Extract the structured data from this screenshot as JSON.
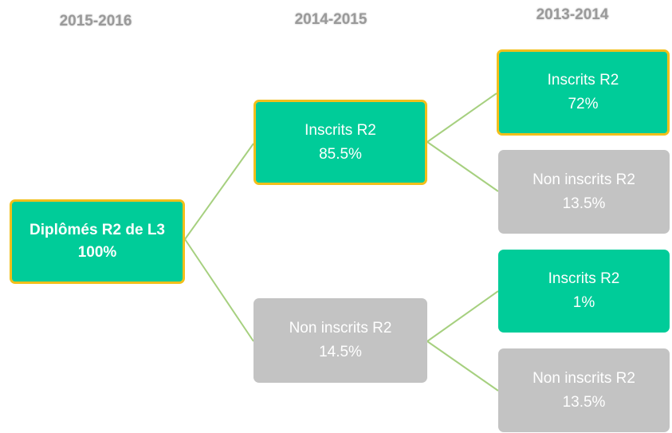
{
  "headers": [
    "2015-2016",
    "2014-2015",
    "2013-2014"
  ],
  "nodes": [
    {
      "label": "Diplômés R2 de L3",
      "value": "100%"
    },
    {
      "label": "Inscrits R2",
      "value": "85.5%"
    },
    {
      "label": "Non inscrits R2",
      "value": "14.5%"
    },
    {
      "label": "Inscrits R2",
      "value": "72%"
    },
    {
      "label": "Non inscrits R2",
      "value": "13.5%"
    },
    {
      "label": "Inscrits R2",
      "value": "1%"
    },
    {
      "label": "Non inscrits R2",
      "value": "13.5%"
    }
  ]
}
